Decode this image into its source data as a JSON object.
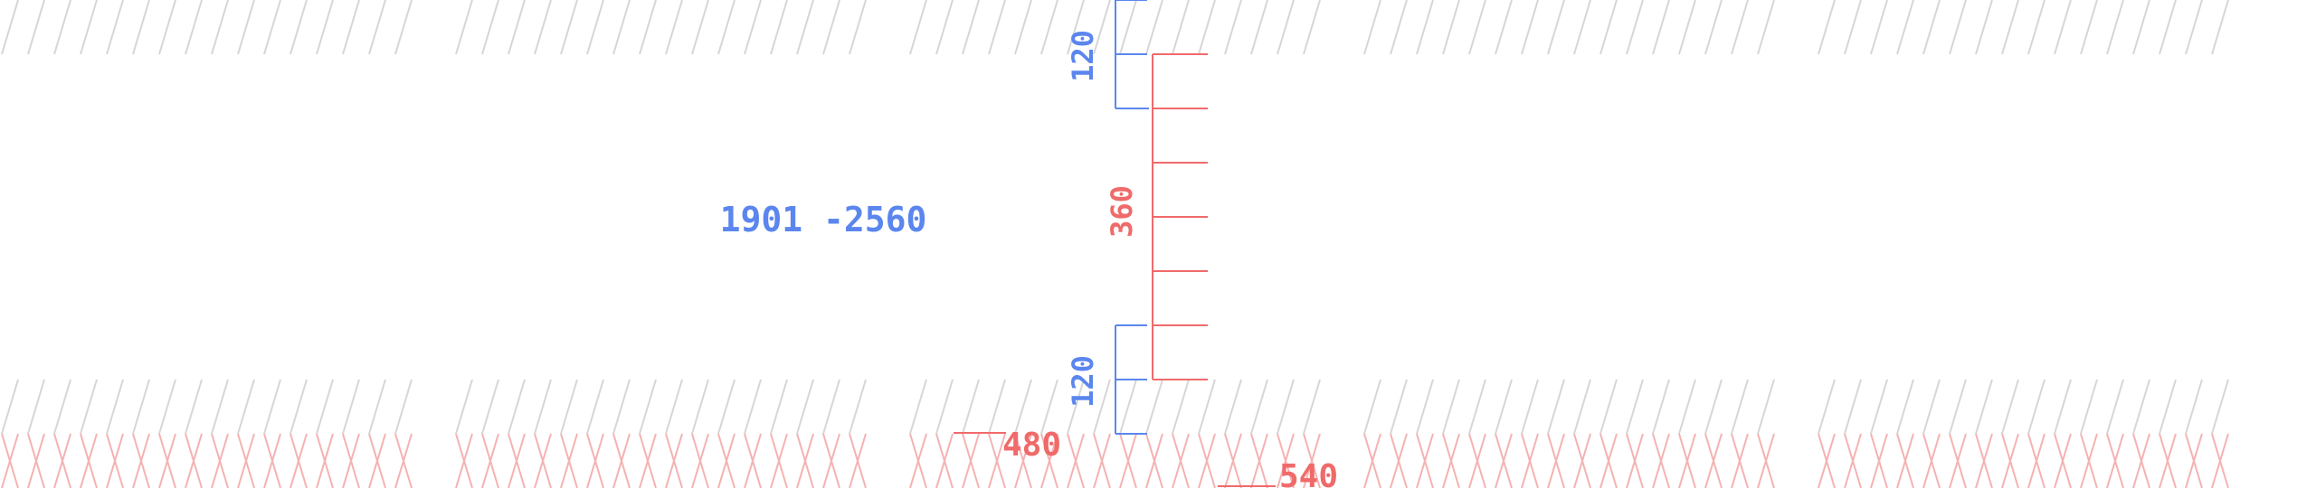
{
  "colors": {
    "blue": "#5b86ee",
    "red": "#f06a6a",
    "hatch_gray": "#d6d6d6",
    "hatch_red": "#f4b2b2",
    "background": "#ffffff"
  },
  "labels": {
    "range": "1901 -2560",
    "top_dim": "120",
    "center_dim": "360",
    "bottom_dim": "120",
    "marker_480": "480",
    "marker_540": "540"
  }
}
